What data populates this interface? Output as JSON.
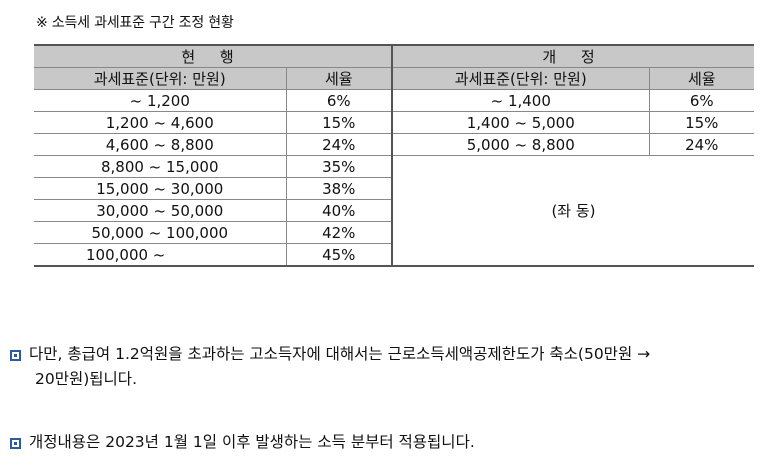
{
  "caption": "※ 소득세 과세표준 구간 조정 현황",
  "table": {
    "current_header": "현 행",
    "revised_header": "개 정",
    "col_base": "과세표준(단위: 만원)",
    "col_rate": "세율",
    "current_rows": [
      {
        "range": "~ 1,200",
        "rate": "6%"
      },
      {
        "range": "1,200 ~ 4,600",
        "rate": "15%"
      },
      {
        "range": "4,600 ~ 8,800",
        "rate": "24%"
      },
      {
        "range": "8,800 ~ 15,000",
        "rate": "35%"
      },
      {
        "range": "15,000 ~ 30,000",
        "rate": "38%"
      },
      {
        "range": "30,000 ~ 50,000",
        "rate": "40%"
      },
      {
        "range": "50,000 ~ 100,000",
        "rate": "42%"
      },
      {
        "range": "100,000 ~",
        "rate": "45%"
      }
    ],
    "revised_rows": [
      {
        "range": "~ 1,400",
        "rate": "6%"
      },
      {
        "range": "1,400 ~ 5,000",
        "rate": "15%"
      },
      {
        "range": "5,000 ~ 8,800",
        "rate": "24%"
      }
    ],
    "same_label": "(좌 동)"
  },
  "notes": [
    {
      "line1": "다만, 총급여 1.2억원을 초과하는 고소득자에 대해서는 근로소득세액공제한도가 축소(50만원 →",
      "line2": "20만원)됩니다."
    },
    {
      "line1": "개정내용은 2023년 1월 1일 이후 발생하는 소득 분부터 적용됩니다."
    }
  ],
  "colors": {
    "header_bg": "#c8c8c8",
    "bullet": "#2c5aa0"
  }
}
